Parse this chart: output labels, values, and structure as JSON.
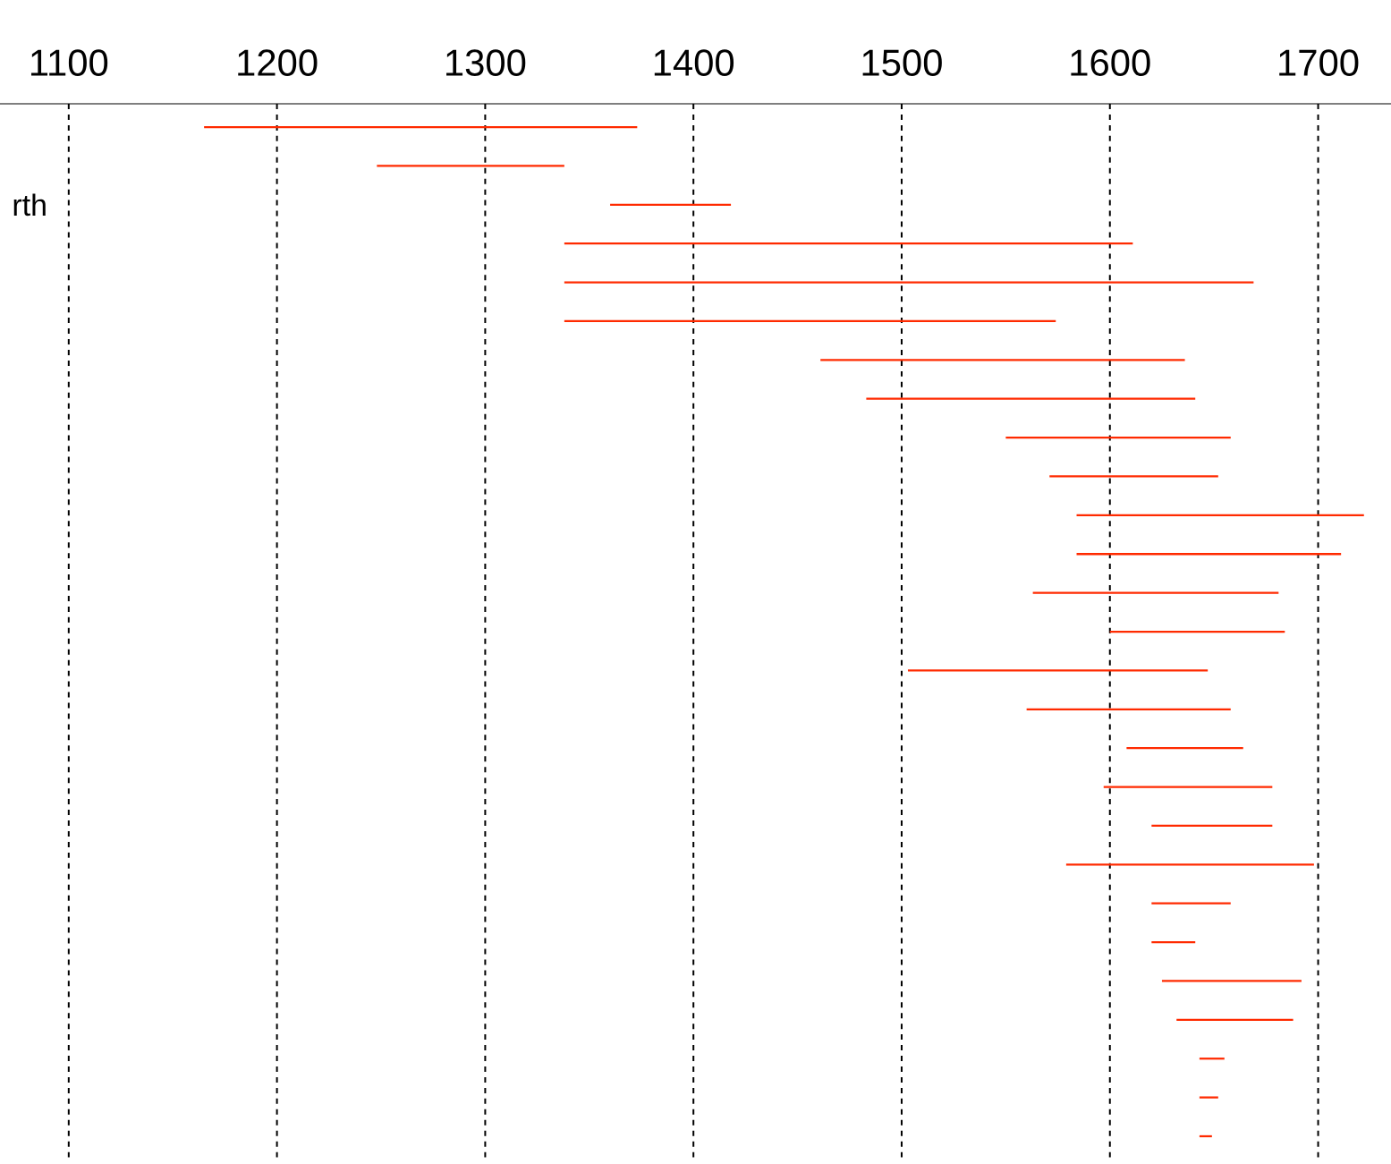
{
  "chart_data": {
    "type": "bar",
    "orientation": "horizontal",
    "categories": [
      null,
      null,
      "rth",
      null,
      null,
      null,
      null,
      null,
      null,
      null,
      null,
      null,
      null,
      null,
      null,
      null,
      null,
      null,
      null,
      null,
      null,
      null,
      null,
      null,
      null,
      null,
      null
    ],
    "base": [
      1165,
      1248,
      1360,
      1338,
      1338,
      1338,
      1461,
      1483,
      1550,
      1571,
      1584,
      1584,
      1563,
      1600,
      1503,
      1560,
      1608,
      1597,
      1620,
      1579,
      1620,
      1620,
      1625,
      1632,
      1643,
      1643,
      1643
    ],
    "values": [
      208,
      90,
      58,
      273,
      331,
      236,
      175,
      158,
      108,
      81,
      138,
      127,
      118,
      84,
      144,
      98,
      56,
      81,
      58,
      119,
      38,
      21,
      67,
      56,
      12,
      9,
      6
    ],
    "color": "#ff2a00",
    "xlim": [
      1067,
      1735
    ],
    "xticks": [
      1100,
      1200,
      1300,
      1400,
      1500,
      1600,
      1700
    ],
    "grid": "x"
  }
}
